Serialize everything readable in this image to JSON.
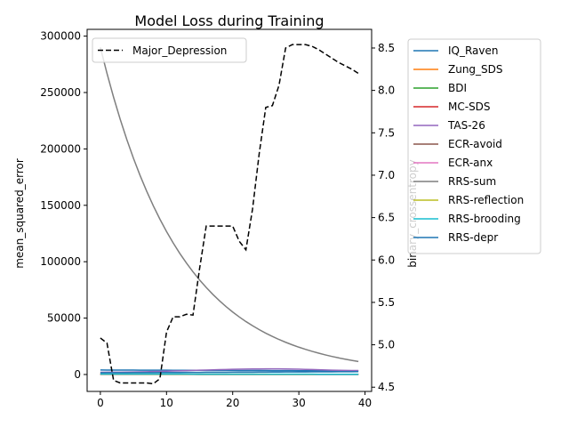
{
  "chart_data": {
    "type": "line",
    "title": "Model Loss during Training",
    "xlabel": "",
    "ylabel_left": "mean_squared_error",
    "ylabel_right": "binary_crossentropy",
    "xlim": [
      -2,
      41
    ],
    "ylim_left": [
      -15000,
      306000
    ],
    "ylim_right": [
      4.45,
      8.72
    ],
    "x_ticks": [
      0,
      10,
      20,
      30,
      40
    ],
    "y_ticks_left": [
      0,
      50000,
      100000,
      150000,
      200000,
      250000,
      300000
    ],
    "y_ticks_right": [
      4.5,
      5.0,
      5.5,
      6.0,
      6.5,
      7.0,
      7.5,
      8.0,
      8.5
    ],
    "grid": false,
    "legend_left_placement": "top-left",
    "legend_right_placement": "outside-right",
    "series_left": [
      {
        "name": "IQ_Raven",
        "color": "#1f77b4",
        "start": 4000,
        "end": 3200,
        "curve": "decay"
      },
      {
        "name": "Zung_SDS",
        "color": "#ff7f0e",
        "start": 300,
        "end": 200,
        "curve": "decay"
      },
      {
        "name": "BDI",
        "color": "#2ca02c",
        "start": 150,
        "end": 100,
        "curve": "decay"
      },
      {
        "name": "MC-SDS",
        "color": "#d62728",
        "start": 200,
        "end": 150,
        "curve": "decay"
      },
      {
        "name": "TAS-26",
        "color": "#9467bd",
        "start": 2000,
        "peak": 5000,
        "end": 3500,
        "curve": "hump"
      },
      {
        "name": "ECR-avoid",
        "color": "#8c564b",
        "start": 100,
        "end": 80,
        "curve": "decay"
      },
      {
        "name": "ECR-anx",
        "color": "#e377c2",
        "start": 120,
        "end": 90,
        "curve": "decay"
      },
      {
        "name": "RRS-sum",
        "color": "#7f7f7f",
        "start": 290000,
        "end": 11500,
        "curve": "exp"
      },
      {
        "name": "RRS-reflection",
        "color": "#bcbd22",
        "start": 250,
        "end": 150,
        "curve": "decay"
      },
      {
        "name": "RRS-brooding",
        "color": "#17becf",
        "start": 400,
        "end": 200,
        "curve": "decay"
      },
      {
        "name": "RRS-depr",
        "color": "#1f77b4",
        "start": 1500,
        "end": 2500,
        "curve": "decay"
      }
    ],
    "series_right": {
      "name": "Major_Depression",
      "color": "#000000",
      "style": "dashed",
      "x": [
        0,
        1,
        2,
        3,
        4,
        5,
        6,
        7,
        8,
        9,
        10,
        11,
        12,
        13,
        14,
        15,
        16,
        17,
        18,
        19,
        20,
        21,
        22,
        23,
        24,
        25,
        26,
        27,
        28,
        29,
        30,
        31,
        32,
        33,
        34,
        35,
        36,
        37,
        38,
        39
      ],
      "values": [
        5.08,
        5.02,
        4.58,
        4.55,
        4.55,
        4.55,
        4.55,
        4.55,
        4.54,
        4.6,
        5.15,
        5.33,
        5.33,
        5.36,
        5.35,
        5.9,
        6.4,
        6.4,
        6.4,
        6.4,
        6.4,
        6.22,
        6.12,
        6.6,
        7.25,
        7.8,
        7.82,
        8.06,
        8.5,
        8.54,
        8.54,
        8.54,
        8.52,
        8.48,
        8.43,
        8.38,
        8.33,
        8.29,
        8.25,
        8.2
      ]
    }
  }
}
